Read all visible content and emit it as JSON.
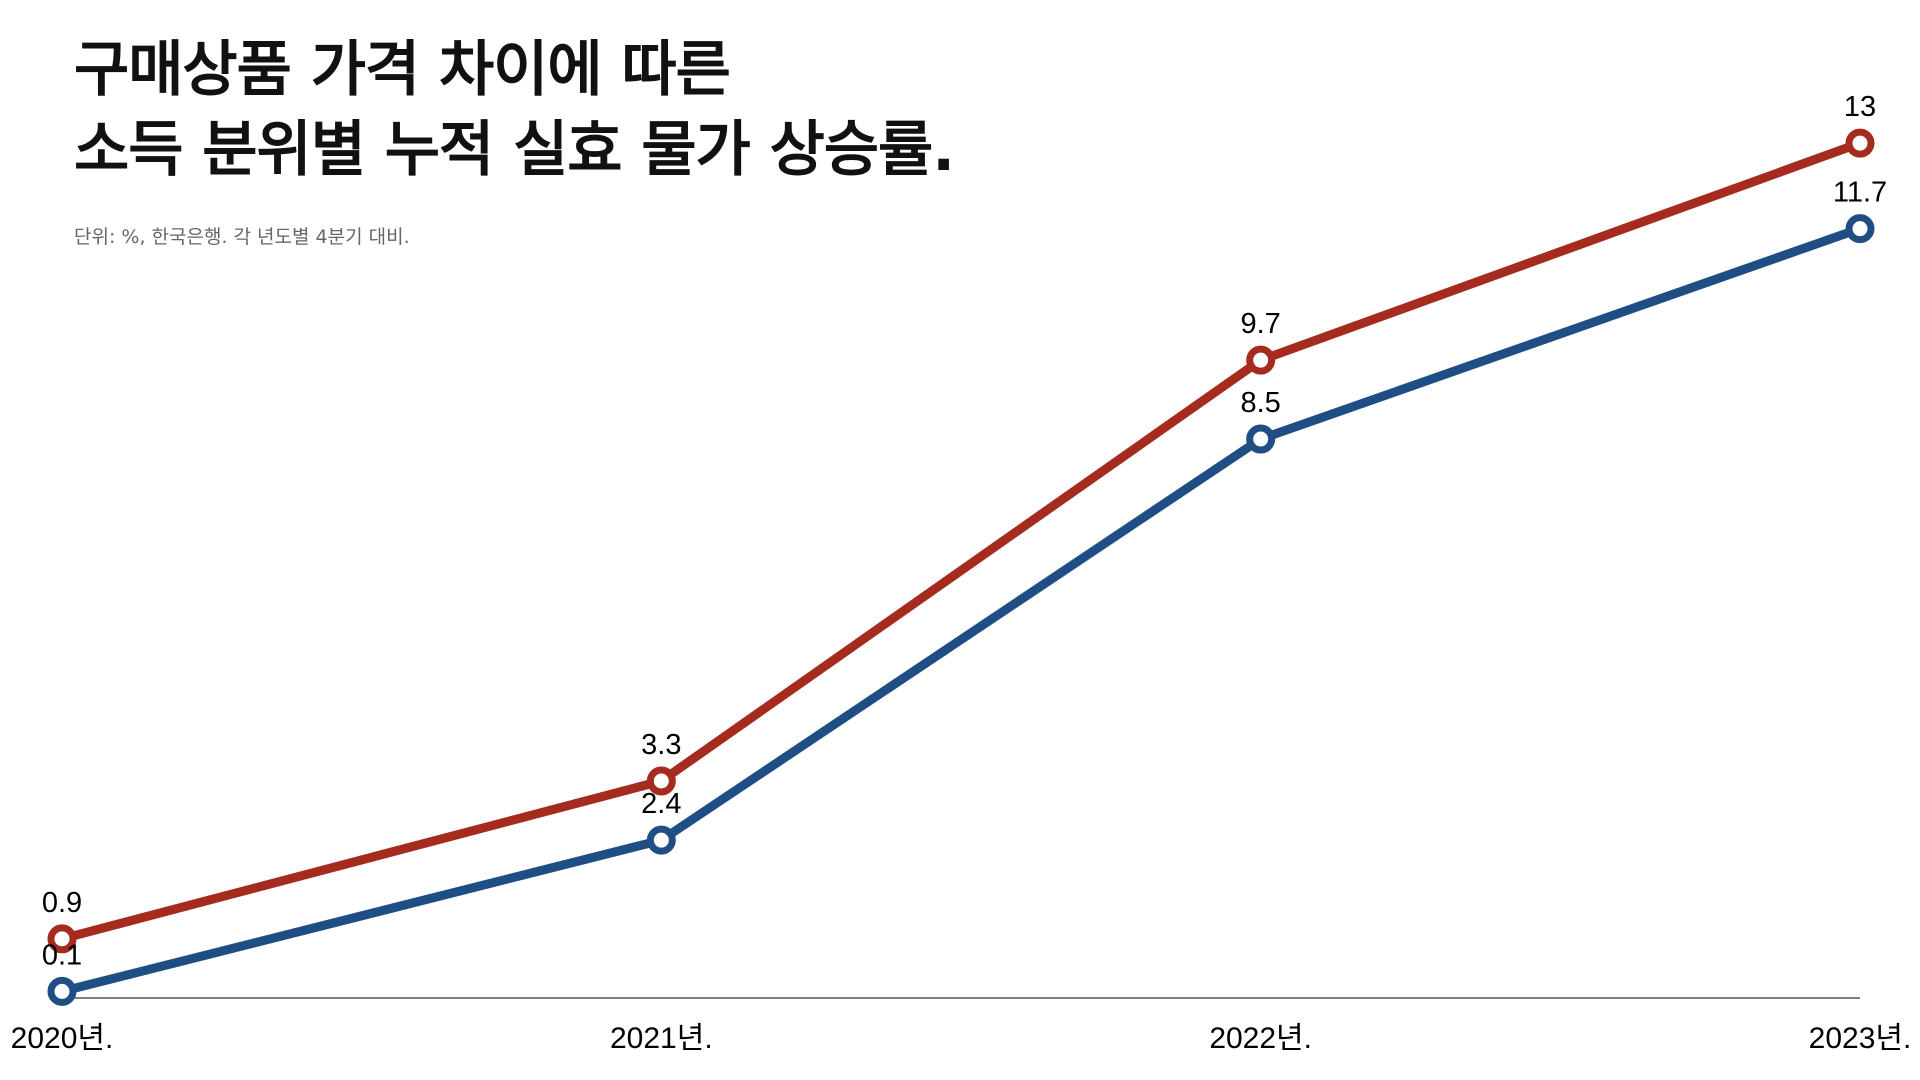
{
  "title_lines": [
    "구매상품 가격 차이에 따른",
    "소득 분위별 누적 실효 물가 상승률."
  ],
  "subtitle": "단위: %, 한국은행. 각 년도별 4분기 대비.",
  "chart_data": {
    "type": "line",
    "title": "구매상품 가격 차이에 따른 소득 분위별 누적 실효 물가 상승률.",
    "subtitle": "단위: %, 한국은행. 각 년도별 4분기 대비.",
    "categories": [
      "2020년.",
      "2021년.",
      "2022년.",
      "2023년."
    ],
    "series": [
      {
        "values": [
          0.9,
          3.3,
          9.7,
          13
        ],
        "labels": [
          "0.9",
          "3.3",
          "9.7",
          "13"
        ],
        "color": "#A62B1F"
      },
      {
        "values": [
          0.1,
          2.4,
          8.5,
          11.7
        ],
        "labels": [
          "0.1",
          "2.4",
          "8.5",
          "11.7"
        ],
        "color": "#1F4E85"
      }
    ],
    "ylim": [
      0,
      13.2
    ],
    "grid": false,
    "legend": "none",
    "xlabel": "",
    "ylabel": ""
  }
}
